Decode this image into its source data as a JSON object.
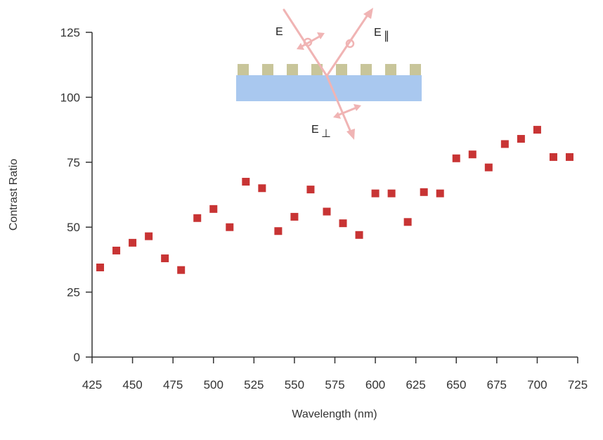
{
  "chart_data": {
    "type": "scatter",
    "xlabel": "Wavelength (nm)",
    "ylabel": "Contrast Ratio",
    "xlim": [
      425,
      725
    ],
    "ylim": [
      0,
      125
    ],
    "xticks": [
      425,
      450,
      475,
      500,
      525,
      550,
      575,
      600,
      625,
      650,
      675,
      700,
      725
    ],
    "yticks": [
      0,
      25,
      50,
      75,
      100,
      125
    ],
    "grid": false,
    "marker_color": "#c83434",
    "marker": "square",
    "x": [
      430,
      440,
      450,
      460,
      470,
      480,
      490,
      500,
      510,
      520,
      530,
      540,
      550,
      560,
      570,
      580,
      590,
      600,
      610,
      620,
      630,
      640,
      650,
      660,
      670,
      680,
      690,
      700,
      710,
      720
    ],
    "y": [
      34.5,
      41,
      44,
      46.5,
      38,
      33.5,
      53.5,
      57,
      50,
      67.5,
      65,
      48.5,
      54,
      64.5,
      56,
      51.5,
      47,
      63,
      63,
      52,
      63.5,
      63,
      76.5,
      78,
      73,
      82,
      84,
      87.5,
      77,
      77
    ]
  },
  "inset": {
    "labels": {
      "incident": "E",
      "reflected": "E",
      "reflected_sub": "∥",
      "transmitted": "E",
      "transmitted_sub": "⊥"
    },
    "colors": {
      "substrate": "#a9c8ef",
      "wires": "#c8c59a",
      "beam": "#f0b4b4"
    }
  }
}
